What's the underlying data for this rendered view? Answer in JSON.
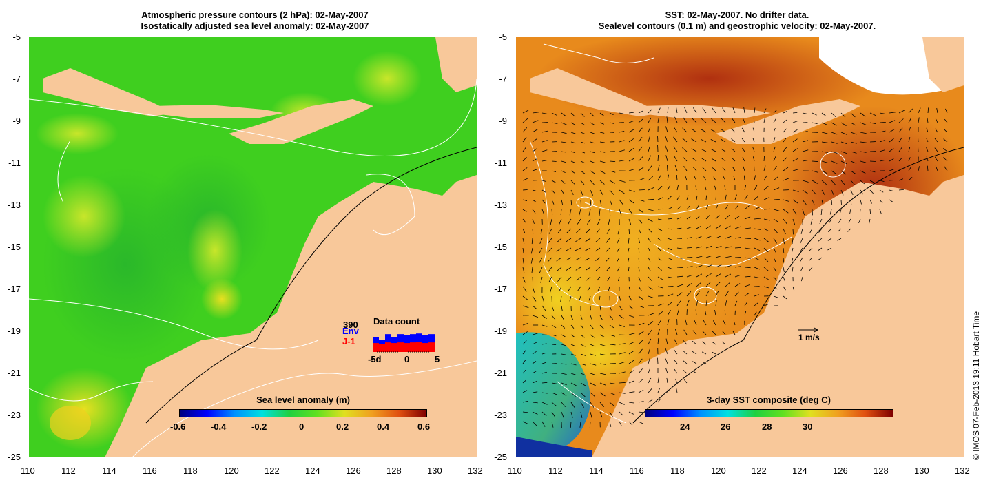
{
  "left_panel": {
    "title_line1": "Atmospheric pressure contours (2 hPa): 02-May-2007",
    "title_line2": "Isostatically adjusted sea level anomaly: 02-May-2007",
    "colorbar_title": "Sea level anomaly (m)",
    "colorbar_ticks": [
      "-0.6",
      "-0.4",
      "-0.2",
      "0",
      "0.2",
      "0.4",
      "0.6"
    ],
    "data_count": {
      "title": "Data count",
      "max_label": "390",
      "series": [
        {
          "name": "Env",
          "color": "#0000ff",
          "values": [
            230,
            190,
            280,
            230,
            280,
            260,
            280,
            290,
            260,
            280
          ]
        },
        {
          "name": "J-1",
          "color": "#ff0000",
          "values": [
            140,
            130,
            150,
            140,
            150,
            140,
            150,
            160,
            140,
            150
          ]
        }
      ],
      "x_ticks": [
        "-5d",
        "0",
        "5"
      ]
    }
  },
  "right_panel": {
    "title_line1": "SST: 02-May-2007. No drifter data.",
    "title_line2": "Sealevel contours (0.1 m) and geostrophic velocity: 02-May-2007.",
    "colorbar_title": "3-day SST composite (deg C)",
    "colorbar_ticks": [
      "24",
      "26",
      "28",
      "30"
    ],
    "scale_label": "1 m/s"
  },
  "y_ticks": [
    "-5",
    "-7",
    "-9",
    "-11",
    "-13",
    "-15",
    "-17",
    "-19",
    "-21",
    "-23",
    "-25"
  ],
  "x_ticks": [
    "110",
    "112",
    "114",
    "116",
    "118",
    "120",
    "122",
    "124",
    "126",
    "128",
    "130",
    "132"
  ],
  "credit": "© IMOS 07-Feb-2013 19:11 Hobart Time",
  "colors": {
    "land": "#f8c89a",
    "ocean_left": "#3fcf1f",
    "ocean_right": "#e07818"
  }
}
